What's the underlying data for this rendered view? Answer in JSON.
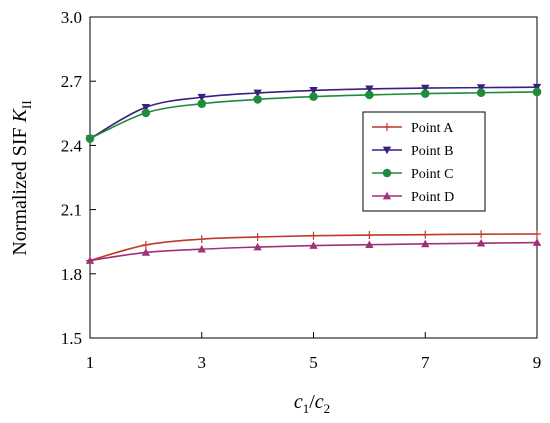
{
  "chart_data": {
    "type": "line",
    "title": "",
    "xlabel": {
      "base": "c",
      "sub1": "1",
      "slash": "/",
      "base2": "c",
      "sub2": "2"
    },
    "ylabel": {
      "prefix": "Normalized SIF ",
      "symbol": "K",
      "sub": "II"
    },
    "xlim": [
      1,
      9
    ],
    "ylim": [
      1.5,
      3.0
    ],
    "xticks": [
      "1",
      "3",
      "5",
      "7",
      "9"
    ],
    "yticks": [
      "1.5",
      "1.8",
      "2.1",
      "2.4",
      "2.7",
      "3.0"
    ],
    "grid": false,
    "legend_position": "right",
    "x": [
      1,
      2,
      3,
      4,
      5,
      6,
      7,
      8,
      9
    ],
    "series": [
      {
        "name": "Point A",
        "color": "#c0392b",
        "marker": "plus",
        "values": [
          1.862,
          1.935,
          1.962,
          1.972,
          1.978,
          1.981,
          1.983,
          1.985,
          1.986
        ]
      },
      {
        "name": "Point B",
        "color": "#3a1f80",
        "marker": "triangle-down",
        "values": [
          2.432,
          2.578,
          2.625,
          2.645,
          2.657,
          2.664,
          2.668,
          2.67,
          2.672
        ]
      },
      {
        "name": "Point C",
        "color": "#1e8c3a",
        "marker": "circle",
        "values": [
          2.432,
          2.552,
          2.595,
          2.615,
          2.628,
          2.636,
          2.642,
          2.646,
          2.65
        ]
      },
      {
        "name": "Point D",
        "color": "#a0307a",
        "marker": "triangle-up",
        "values": [
          1.862,
          1.9,
          1.915,
          1.925,
          1.932,
          1.936,
          1.94,
          1.943,
          1.946
        ]
      }
    ]
  }
}
